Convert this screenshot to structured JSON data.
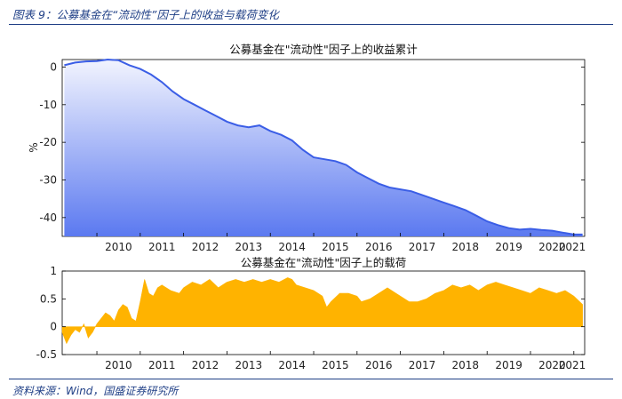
{
  "header": {
    "caption": "图表 9：公募基金在“流动性”因子上的收益与载荷变化"
  },
  "footer": {
    "source": "资料来源：Wind，国盛证券研究所"
  },
  "colors": {
    "line": "#3b5ee6",
    "fill_top": "#f2f4fe",
    "fill_bottom": "#5b79f0",
    "bar": "#ffb300",
    "rule": "#1f3f86"
  },
  "chart_data": [
    {
      "type": "area",
      "title": "公募基金在\"流动性\"因子上的收益累计",
      "xlabel": "",
      "ylabel": "%",
      "xlim": [
        2009.2,
        2021.25
      ],
      "ylim": [
        -45,
        2
      ],
      "y_ticks": [
        0,
        -10,
        -20,
        -30,
        -40
      ],
      "x_ticks": [
        "2010",
        "2011",
        "2012",
        "2013",
        "2014",
        "2015",
        "2016",
        "2017",
        "2018",
        "2019",
        "2020",
        "2021"
      ],
      "grid": false,
      "series": [
        {
          "x": [
            2009.25,
            2009.5,
            2009.75,
            2010.0,
            2010.25,
            2010.5,
            2010.75,
            2011.0,
            2011.25,
            2011.5,
            2011.75,
            2012.0,
            2012.25,
            2012.5,
            2012.75,
            2013.0,
            2013.25,
            2013.5,
            2013.75,
            2014.0,
            2014.25,
            2014.5,
            2014.75,
            2015.0,
            2015.25,
            2015.5,
            2015.75,
            2016.0,
            2016.25,
            2016.5,
            2016.75,
            2017.0,
            2017.25,
            2017.5,
            2017.75,
            2018.0,
            2018.25,
            2018.5,
            2018.75,
            2019.0,
            2019.25,
            2019.5,
            2019.75,
            2020.0,
            2020.25,
            2020.5,
            2020.75,
            2021.0,
            2021.2
          ],
          "values": [
            0.5,
            1.2,
            1.5,
            1.6,
            2.0,
            1.8,
            0.5,
            -0.5,
            -2.0,
            -4.0,
            -6.5,
            -8.5,
            -10.0,
            -11.5,
            -13.0,
            -14.5,
            -15.5,
            -16.0,
            -15.5,
            -17.0,
            -18.0,
            -19.5,
            -22.0,
            -24.0,
            -24.5,
            -25.0,
            -26.0,
            -28.0,
            -29.5,
            -31.0,
            -32.0,
            -32.5,
            -33.0,
            -34.0,
            -35.0,
            -36.0,
            -37.0,
            -38.0,
            -39.5,
            -41.0,
            -42.0,
            -42.8,
            -43.2,
            -43.0,
            -43.3,
            -43.5,
            -44.0,
            -44.5,
            -44.5
          ]
        }
      ]
    },
    {
      "type": "area",
      "title": "公募基金在\"流动性\"因子上的载荷",
      "xlabel": "",
      "ylabel": "",
      "xlim": [
        2009.2,
        2021.25
      ],
      "ylim": [
        -0.5,
        1
      ],
      "y_ticks": [
        1,
        0.5,
        0,
        -0.5
      ],
      "y_tick_labels": [
        "1",
        "0.5",
        "0",
        "-0.5"
      ],
      "x_ticks": [
        "2010",
        "2011",
        "2012",
        "2013",
        "2014",
        "2015",
        "2016",
        "2017",
        "2018",
        "2019",
        "2020",
        "2021"
      ],
      "grid": false,
      "series": [
        {
          "x": [
            2009.2,
            2009.3,
            2009.4,
            2009.5,
            2009.6,
            2009.7,
            2009.8,
            2009.9,
            2010.0,
            2010.1,
            2010.2,
            2010.3,
            2010.4,
            2010.5,
            2010.6,
            2010.7,
            2010.8,
            2010.9,
            2011.0,
            2011.1,
            2011.2,
            2011.3,
            2011.4,
            2011.5,
            2011.7,
            2011.9,
            2012.0,
            2012.2,
            2012.4,
            2012.6,
            2012.8,
            2013.0,
            2013.2,
            2013.4,
            2013.6,
            2013.8,
            2014.0,
            2014.2,
            2014.4,
            2014.5,
            2014.6,
            2014.8,
            2015.0,
            2015.2,
            2015.3,
            2015.4,
            2015.6,
            2015.8,
            2016.0,
            2016.1,
            2016.3,
            2016.5,
            2016.7,
            2016.9,
            2017.0,
            2017.2,
            2017.4,
            2017.6,
            2017.8,
            2018.0,
            2018.2,
            2018.4,
            2018.6,
            2018.8,
            2019.0,
            2019.2,
            2019.4,
            2019.6,
            2019.8,
            2020.0,
            2020.2,
            2020.4,
            2020.6,
            2020.8,
            2021.0,
            2021.2
          ],
          "values": [
            -0.1,
            -0.3,
            -0.15,
            -0.05,
            -0.1,
            0.05,
            -0.2,
            -0.1,
            0.05,
            0.15,
            0.25,
            0.2,
            0.1,
            0.3,
            0.4,
            0.35,
            0.15,
            0.1,
            0.45,
            0.85,
            0.6,
            0.55,
            0.7,
            0.75,
            0.65,
            0.6,
            0.7,
            0.8,
            0.75,
            0.85,
            0.7,
            0.8,
            0.85,
            0.8,
            0.85,
            0.8,
            0.85,
            0.8,
            0.88,
            0.85,
            0.75,
            0.7,
            0.65,
            0.55,
            0.35,
            0.45,
            0.6,
            0.6,
            0.55,
            0.45,
            0.5,
            0.6,
            0.7,
            0.6,
            0.55,
            0.45,
            0.45,
            0.5,
            0.6,
            0.65,
            0.75,
            0.7,
            0.75,
            0.65,
            0.75,
            0.8,
            0.75,
            0.7,
            0.65,
            0.6,
            0.7,
            0.65,
            0.6,
            0.65,
            0.55,
            0.4
          ]
        }
      ]
    }
  ]
}
